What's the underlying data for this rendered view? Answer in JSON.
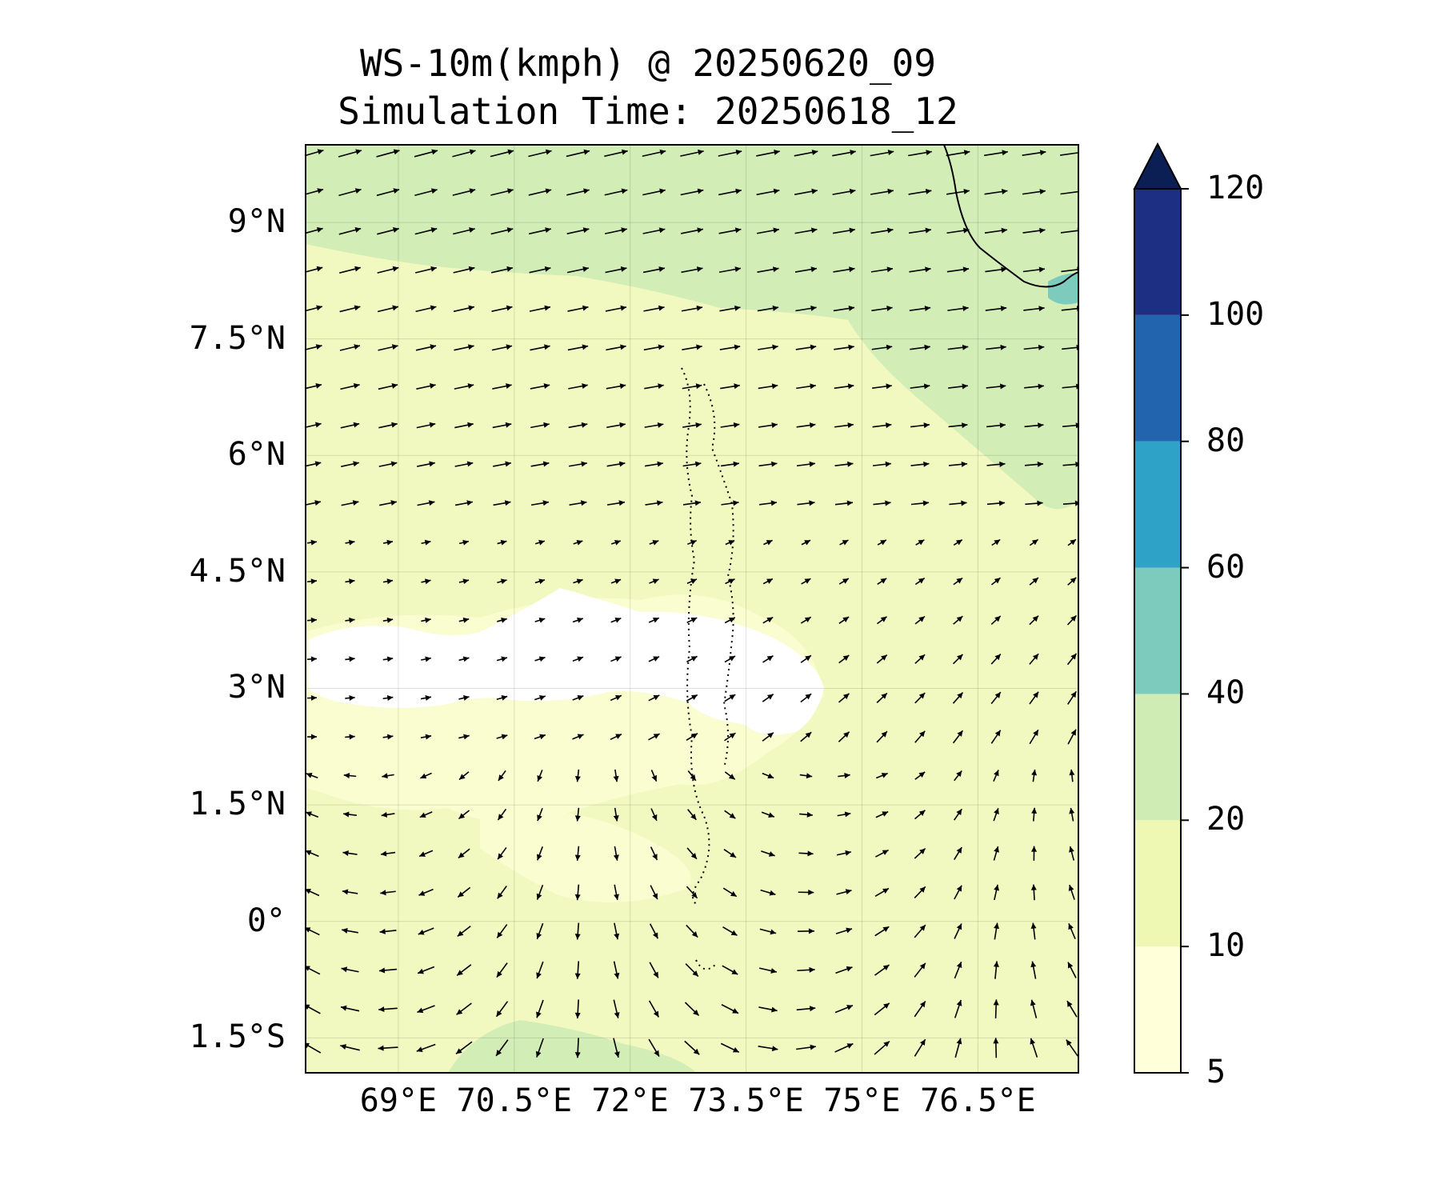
{
  "title": {
    "line1": "WS-10m(kmph) @ 20250620_09",
    "line2": "Simulation Time: 20250618_12"
  },
  "map": {
    "lon_range": [
      67.8,
      77.8
    ],
    "lat_range": [
      -1.95,
      10.0
    ],
    "lon_ticks": [
      {
        "value": 69,
        "label": "69°E"
      },
      {
        "value": 70.5,
        "label": "70.5°E"
      },
      {
        "value": 72,
        "label": "72°E"
      },
      {
        "value": 73.5,
        "label": "73.5°E"
      },
      {
        "value": 75,
        "label": "75°E"
      },
      {
        "value": 76.5,
        "label": "76.5°E"
      }
    ],
    "lat_ticks": [
      {
        "value": 9,
        "label": "9°N"
      },
      {
        "value": 7.5,
        "label": "7.5°N"
      },
      {
        "value": 6,
        "label": "6°N"
      },
      {
        "value": 4.5,
        "label": "4.5°N"
      },
      {
        "value": 3,
        "label": "3°N"
      },
      {
        "value": 1.5,
        "label": "1.5°N"
      },
      {
        "value": 0,
        "label": "0°"
      },
      {
        "value": -1.5,
        "label": "1.5°S"
      }
    ],
    "gridlines": true
  },
  "colorbar": {
    "levels": [
      5,
      10,
      20,
      40,
      60,
      80,
      100,
      120
    ],
    "labels": [
      "5",
      "10",
      "20",
      "40",
      "60",
      "80",
      "100",
      "120"
    ],
    "colors": [
      "#ffffd9",
      "#eef8b3",
      "#d0ecb5",
      "#7dcbbc",
      "#2fa3c7",
      "#2264ad",
      "#1d2f82"
    ],
    "extend_color": "#0b1f55",
    "extend": "max"
  }
}
